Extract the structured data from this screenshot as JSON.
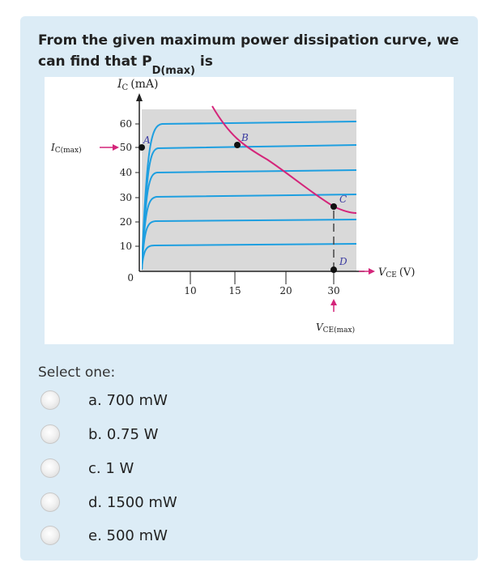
{
  "question": {
    "text_before": "From the given maximum power dissipation curve, we can find that P",
    "subscript": "D(max)",
    "text_after": "is"
  },
  "figure": {
    "y_axis_label": "I",
    "y_axis_label_sub": "C",
    "y_axis_label_unit": "(mA)",
    "x_axis_label": "V",
    "x_axis_label_sub": "CE",
    "x_axis_label_unit": "(V)",
    "icmax_label": "I",
    "icmax_label_sub": "C(max)",
    "vcemax_label": "V",
    "vcemax_label_sub": "CE(max)",
    "y_ticks": [
      "60",
      "50",
      "40",
      "30",
      "20",
      "10"
    ],
    "x_ticks": [
      "10",
      "15",
      "20",
      "30"
    ],
    "origin_label": "0",
    "points": [
      "A",
      "B",
      "C",
      "D"
    ],
    "colors": {
      "curves": "#1e9fe0",
      "power_curve": "#d4257a",
      "shade": "#d9d9d9",
      "dots": "#111111"
    }
  },
  "select_label": "Select one:",
  "options": [
    "a. 700 mW",
    "b. 0.75 W",
    "c. 1 W",
    "d. 1500 mW",
    "e. 500 mW"
  ]
}
